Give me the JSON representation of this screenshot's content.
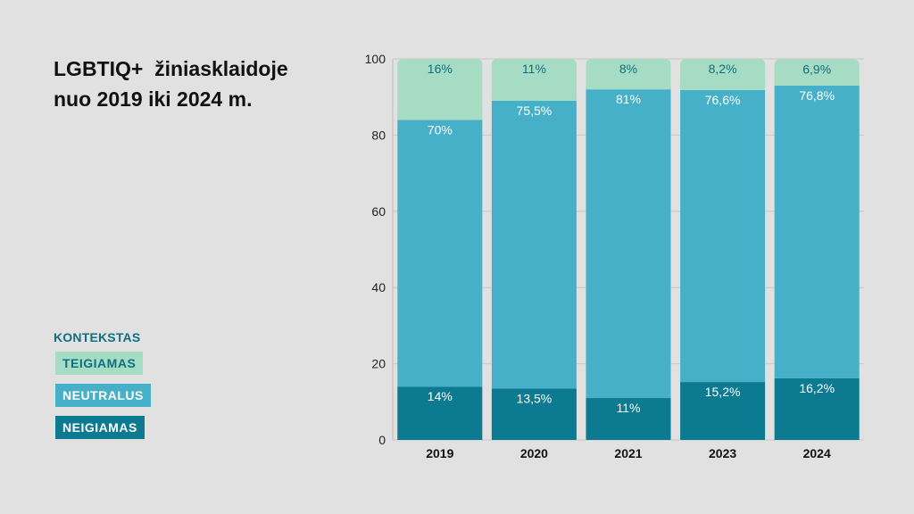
{
  "title_lines": [
    "LGBTIQ+  žiniasklaidoje",
    "nuo 2019 iki 2024 m."
  ],
  "legend": {
    "title": "KONTEKSTAS",
    "items": [
      {
        "label": "TEIGIAMAS",
        "bg": "#a6dcc4",
        "fg": "#0e6f82"
      },
      {
        "label": "NEUTRALUS",
        "bg": "#47b0c9",
        "fg": "#ffffff"
      },
      {
        "label": "NEIGIAMAS",
        "bg": "#0c7a90",
        "fg": "#ffffff"
      }
    ]
  },
  "chart_data": {
    "type": "bar",
    "stacked": true,
    "categories": [
      "2019",
      "2020",
      "2021",
      "2023",
      "2024"
    ],
    "ylim": [
      0,
      100
    ],
    "yticks": [
      0,
      20,
      40,
      60,
      80,
      100
    ],
    "series": [
      {
        "name": "NEIGIAMAS",
        "color": "#0c7a90",
        "label_color": "#ffffff",
        "values": [
          14,
          13.5,
          11,
          15.2,
          16.2
        ],
        "labels": [
          "14%",
          "13,5%",
          "11%",
          "15,2%",
          "16,2%"
        ]
      },
      {
        "name": "NEUTRALUS",
        "color": "#47b0c9",
        "label_color": "#ffffff",
        "values": [
          70,
          75.5,
          81,
          76.6,
          76.8
        ],
        "labels": [
          "70%",
          "75,5%",
          "81%",
          "76,6%",
          "76,8%"
        ]
      },
      {
        "name": "TEIGIAMAS",
        "color": "#a6dcc4",
        "label_color": "#0e6f82",
        "values": [
          16,
          11,
          8,
          8.2,
          6.9
        ],
        "labels": [
          "16%",
          "11%",
          "8%",
          "8,2%",
          "6,9%"
        ]
      }
    ],
    "grid": true
  }
}
